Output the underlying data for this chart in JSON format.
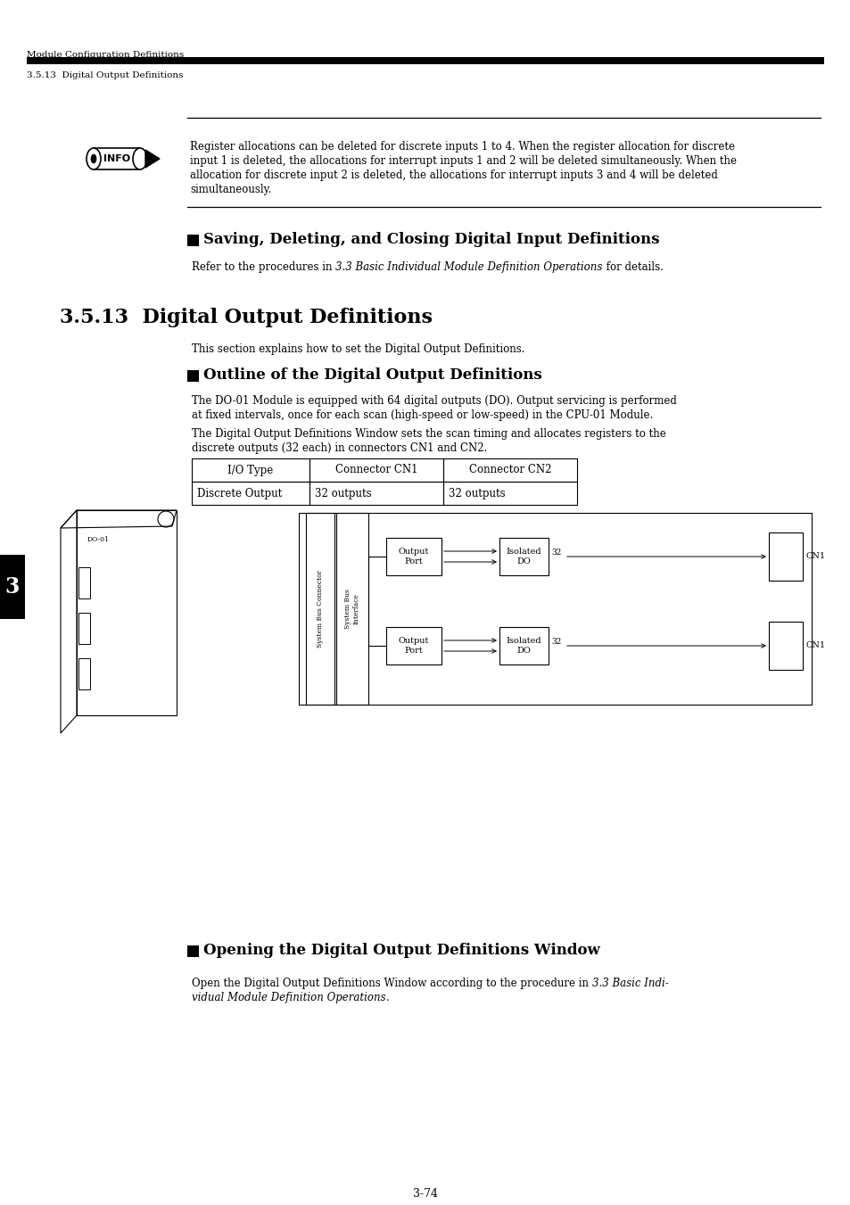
{
  "bg_color": "#ffffff",
  "header_line1": "Module Configuration Definitions",
  "header_line2": "3.5.13  Digital Output Definitions",
  "info_text_lines": [
    "Register allocations can be deleted for discrete inputs 1 to 4. When the register allocation for discrete",
    "input 1 is deleted, the allocations for interrupt inputs 1 and 2 will be deleted simultaneously. When the",
    "allocation for discrete input 2 is deleted, the allocations for interrupt inputs 3 and 4 will be deleted",
    "simultaneously."
  ],
  "section_title_saving": "Saving, Deleting, and Closing Digital Input Definitions",
  "saving_normal1": "Refer to the procedures in ",
  "saving_italic": "3.3 Basic Individual Module Definition Operations",
  "saving_normal2": " for details.",
  "section_heading": "3.5.13  Digital Output Definitions",
  "section_body": "This section explains how to set the Digital Output Definitions.",
  "subsection1": "Outline of the Digital Output Definitions",
  "outline_para1_lines": [
    "The DO-01 Module is equipped with 64 digital outputs (DO). Output servicing is performed",
    "at fixed intervals, once for each scan (high-speed or low-speed) in the CPU-01 Module."
  ],
  "outline_para2_lines": [
    "The Digital Output Definitions Window sets the scan timing and allocates registers to the",
    "discrete outputs (32 each) in connectors CN1 and CN2."
  ],
  "table_headers": [
    "I/O Type",
    "Connector CN1",
    "Connector CN2"
  ],
  "table_row": [
    "Discrete Output",
    "32 outputs",
    "32 outputs"
  ],
  "subsection2": "Opening the Digital Output Definitions Window",
  "opening_normal1": "Open the Digital Output Definitions Window according to the procedure in ",
  "opening_italic1": "3.3 Basic Indi-",
  "opening_italic2": "vidual Module Definition Operations",
  "opening_normal2": ".",
  "page_number": "3-74",
  "tab_label": "3",
  "sbc_label": "System Bus Connector",
  "sbi_label": "System Bus\nInterface",
  "ch_label1": "Output\nPort",
  "ch_label2": "Isolated\nDO",
  "cn_label": "CN1",
  "num32": "32"
}
